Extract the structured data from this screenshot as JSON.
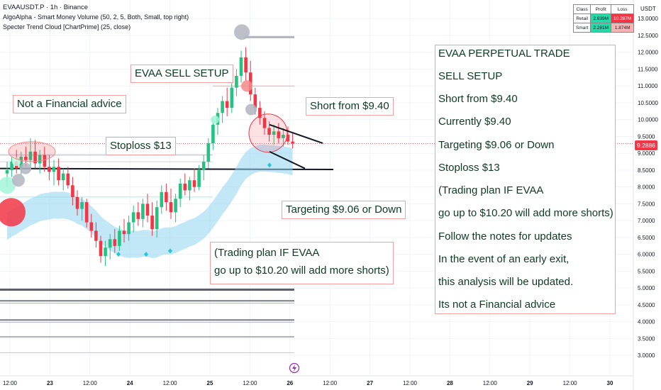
{
  "header": {
    "symbol_line": "EVAAUSDT.P · 1h · Binance",
    "indicator_1": "AlgoAlpha - Smart Money Volume (50, 2, 5, Both, Small, top right)",
    "indicator_2": "Specter Trend Cloud [ChartPrime] (25, close)"
  },
  "stats_table": {
    "head": [
      "Class",
      "Profit",
      "Loss"
    ],
    "rows": [
      {
        "cls": "Retail",
        "profit": "2.639M",
        "loss": "10.287M"
      },
      {
        "cls": "Smart",
        "profit": "2.281M",
        "loss": "1.874M"
      }
    ],
    "colors": {
      "profit": "#26d9a8",
      "loss_high": "#f23645",
      "loss_low": "#f8b4b4"
    }
  },
  "annotations": {
    "sell_setup": "EVAA SELL SETUP",
    "not_advice": "Not a Financial advice",
    "stoploss": "Stoploss $13",
    "short_from": "Short from $9.40",
    "targeting": "Targeting $9.06 or Down",
    "plan_line1": "(Trading plan IF EVAA",
    "plan_line2": "go up to $10.20 will add more shorts)"
  },
  "notes_panel": [
    "EVAA PERPETUAL TRADE",
    "SELL SETUP",
    "Short from $9.40",
    "Currently $9.40",
    "Targeting $9.06 or Down",
    "Stoploss $13",
    "(Trading plan IF EVAA",
    "go up to $10.20 will add more shorts)",
    "Follow the notes for updates",
    "In the event of an early exit,",
    "this analysis will be updated.",
    "Its not a Financial advice"
  ],
  "chart_data": {
    "type": "candlestick",
    "currency": "USDT",
    "current_price": 9.2886,
    "current_price_label": "9.2886",
    "ylim": [
      2.75,
      13.3
    ],
    "y_ticks": [
      3.0,
      3.5,
      4.0,
      4.5,
      5.0,
      5.5,
      6.0,
      6.5,
      7.0,
      7.5,
      8.0,
      8.5,
      9.0,
      9.5,
      10.0,
      10.5,
      11.0,
      11.5,
      12.0,
      12.5,
      13.0
    ],
    "x_tick_labels": [
      "12:00",
      "23",
      "12:00",
      "24",
      "12:00",
      "25",
      "12:00",
      "26",
      "12:00",
      "27",
      "12:00",
      "28",
      "12:00",
      "29",
      "12:00",
      "30"
    ],
    "levels": {
      "stoploss": 13,
      "entry": 9.4,
      "add_shorts": 10.2,
      "target": 9.06
    },
    "colors": {
      "up": "#26c281",
      "down": "#f23645",
      "cloud": "#8fd3f0"
    },
    "candles": [
      {
        "o": 8.4,
        "h": 8.75,
        "l": 8.0,
        "c": 8.5
      },
      {
        "o": 8.5,
        "h": 8.9,
        "l": 8.3,
        "c": 8.75
      },
      {
        "o": 8.75,
        "h": 9.1,
        "l": 8.4,
        "c": 8.55
      },
      {
        "o": 8.55,
        "h": 9.05,
        "l": 8.35,
        "c": 8.9
      },
      {
        "o": 8.9,
        "h": 9.2,
        "l": 8.6,
        "c": 8.8
      },
      {
        "o": 8.8,
        "h": 9.45,
        "l": 8.5,
        "c": 9.05
      },
      {
        "o": 9.05,
        "h": 9.4,
        "l": 8.55,
        "c": 8.7
      },
      {
        "o": 8.7,
        "h": 9.1,
        "l": 8.4,
        "c": 8.95
      },
      {
        "o": 8.95,
        "h": 9.2,
        "l": 8.45,
        "c": 8.6
      },
      {
        "o": 8.6,
        "h": 8.95,
        "l": 8.2,
        "c": 8.45
      },
      {
        "o": 8.45,
        "h": 8.8,
        "l": 8.05,
        "c": 8.6
      },
      {
        "o": 8.6,
        "h": 8.85,
        "l": 8.05,
        "c": 8.2
      },
      {
        "o": 8.2,
        "h": 8.55,
        "l": 7.9,
        "c": 8.4
      },
      {
        "o": 8.4,
        "h": 8.6,
        "l": 7.95,
        "c": 8.05
      },
      {
        "o": 8.05,
        "h": 8.3,
        "l": 7.45,
        "c": 7.7
      },
      {
        "o": 7.7,
        "h": 7.9,
        "l": 7.15,
        "c": 7.35
      },
      {
        "o": 7.35,
        "h": 7.7,
        "l": 7.0,
        "c": 7.55
      },
      {
        "o": 7.55,
        "h": 7.65,
        "l": 6.8,
        "c": 6.95
      },
      {
        "o": 6.95,
        "h": 7.2,
        "l": 6.5,
        "c": 6.7
      },
      {
        "o": 6.7,
        "h": 6.95,
        "l": 6.2,
        "c": 6.4
      },
      {
        "o": 6.4,
        "h": 6.55,
        "l": 5.75,
        "c": 5.95
      },
      {
        "o": 5.95,
        "h": 6.4,
        "l": 5.65,
        "c": 6.2
      },
      {
        "o": 6.2,
        "h": 6.6,
        "l": 5.85,
        "c": 6.45
      },
      {
        "o": 6.45,
        "h": 6.75,
        "l": 6.05,
        "c": 6.25
      },
      {
        "o": 6.25,
        "h": 6.85,
        "l": 6.1,
        "c": 6.7
      },
      {
        "o": 6.7,
        "h": 7.05,
        "l": 6.35,
        "c": 6.6
      },
      {
        "o": 6.6,
        "h": 7.15,
        "l": 6.4,
        "c": 6.95
      },
      {
        "o": 6.95,
        "h": 7.45,
        "l": 6.65,
        "c": 7.25
      },
      {
        "o": 7.25,
        "h": 7.55,
        "l": 6.85,
        "c": 7.05
      },
      {
        "o": 7.05,
        "h": 7.65,
        "l": 6.8,
        "c": 7.5
      },
      {
        "o": 7.5,
        "h": 7.8,
        "l": 6.95,
        "c": 7.15
      },
      {
        "o": 7.15,
        "h": 7.55,
        "l": 6.55,
        "c": 6.75
      },
      {
        "o": 6.75,
        "h": 7.6,
        "l": 6.5,
        "c": 7.4
      },
      {
        "o": 7.4,
        "h": 8.05,
        "l": 7.2,
        "c": 7.85
      },
      {
        "o": 7.85,
        "h": 8.1,
        "l": 7.3,
        "c": 7.55
      },
      {
        "o": 7.55,
        "h": 7.95,
        "l": 7.05,
        "c": 7.25
      },
      {
        "o": 7.25,
        "h": 7.8,
        "l": 6.95,
        "c": 7.65
      },
      {
        "o": 7.65,
        "h": 8.25,
        "l": 7.4,
        "c": 8.1
      },
      {
        "o": 8.1,
        "h": 8.4,
        "l": 7.75,
        "c": 7.9
      },
      {
        "o": 7.9,
        "h": 8.3,
        "l": 7.6,
        "c": 8.2
      },
      {
        "o": 8.2,
        "h": 8.55,
        "l": 7.85,
        "c": 8.0
      },
      {
        "o": 8.0,
        "h": 8.65,
        "l": 7.9,
        "c": 8.5
      },
      {
        "o": 8.5,
        "h": 8.95,
        "l": 8.2,
        "c": 8.75
      },
      {
        "o": 8.75,
        "h": 9.45,
        "l": 8.55,
        "c": 9.3
      },
      {
        "o": 9.3,
        "h": 10.05,
        "l": 9.1,
        "c": 9.85
      },
      {
        "o": 9.85,
        "h": 10.35,
        "l": 9.55,
        "c": 10.2
      },
      {
        "o": 10.2,
        "h": 10.7,
        "l": 9.9,
        "c": 10.55
      },
      {
        "o": 10.55,
        "h": 10.95,
        "l": 10.1,
        "c": 10.35
      },
      {
        "o": 10.35,
        "h": 11.2,
        "l": 10.2,
        "c": 10.95
      },
      {
        "o": 10.95,
        "h": 11.5,
        "l": 10.7,
        "c": 11.3
      },
      {
        "o": 11.3,
        "h": 12.05,
        "l": 11.1,
        "c": 11.85
      },
      {
        "o": 11.85,
        "h": 12.15,
        "l": 11.15,
        "c": 11.4
      },
      {
        "o": 11.4,
        "h": 11.75,
        "l": 10.55,
        "c": 10.75
      },
      {
        "o": 10.75,
        "h": 10.95,
        "l": 10.15,
        "c": 10.35
      },
      {
        "o": 10.35,
        "h": 10.55,
        "l": 9.85,
        "c": 10.05
      },
      {
        "o": 10.05,
        "h": 10.25,
        "l": 9.55,
        "c": 9.75
      },
      {
        "o": 9.75,
        "h": 9.95,
        "l": 9.35,
        "c": 9.55
      },
      {
        "o": 9.55,
        "h": 9.85,
        "l": 9.25,
        "c": 9.65
      },
      {
        "o": 9.65,
        "h": 9.9,
        "l": 9.3,
        "c": 9.45
      },
      {
        "o": 9.45,
        "h": 9.75,
        "l": 9.2,
        "c": 9.55
      },
      {
        "o": 9.55,
        "h": 9.8,
        "l": 9.25,
        "c": 9.35
      },
      {
        "o": 9.35,
        "h": 9.6,
        "l": 9.15,
        "c": 9.29
      }
    ]
  }
}
